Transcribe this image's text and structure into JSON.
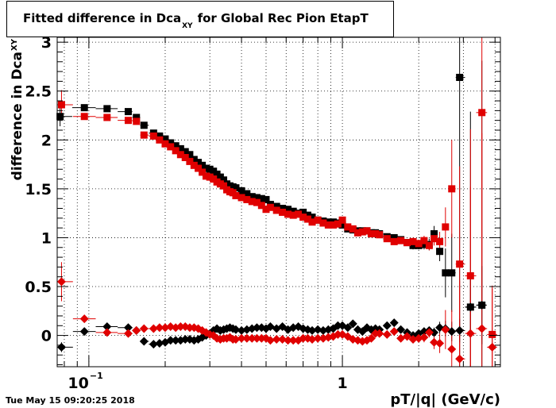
{
  "chart_data": {
    "type": "scatter",
    "title": {
      "main": "Fitted difference in Dca",
      "sub": "XY",
      "rest": "for Global Rec Pion EtapT"
    },
    "ylabel": {
      "main": "difference in Dca",
      "sub": "XY"
    },
    "xlabel": "pT/|q| (GeV/c)",
    "xscale": "log",
    "xlim": [
      0.075,
      4.2
    ],
    "ylim": [
      -0.32,
      3.05
    ],
    "grid": true,
    "ytick_labels": [
      "0",
      "0.5",
      "1",
      "1.5",
      "2",
      "2.5",
      "3"
    ],
    "xtick_labels": [
      {
        "base": "10",
        "exp": "−1"
      },
      {
        "base": "1",
        "exp": ""
      }
    ],
    "series": [
      {
        "marker": "square",
        "color": "#000000",
        "x": [
          0.077,
          0.096,
          0.118,
          0.143,
          0.154,
          0.165,
          0.18,
          0.19,
          0.2,
          0.21,
          0.22,
          0.23,
          0.24,
          0.25,
          0.26,
          0.27,
          0.28,
          0.29,
          0.3,
          0.31,
          0.32,
          0.33,
          0.34,
          0.35,
          0.36,
          0.37,
          0.38,
          0.4,
          0.42,
          0.44,
          0.46,
          0.48,
          0.5,
          0.52,
          0.55,
          0.58,
          0.61,
          0.64,
          0.67,
          0.7,
          0.73,
          0.76,
          0.8,
          0.84,
          0.88,
          0.92,
          0.96,
          1.0,
          1.05,
          1.1,
          1.15,
          1.2,
          1.25,
          1.3,
          1.35,
          1.4,
          1.5,
          1.6,
          1.7,
          1.8,
          1.9,
          2.0,
          2.1,
          2.2,
          2.3,
          2.42,
          2.55,
          2.7,
          2.9,
          3.2,
          3.55
        ],
        "y": [
          2.24,
          2.33,
          2.32,
          2.29,
          2.23,
          2.15,
          2.07,
          2.04,
          2.01,
          1.97,
          1.94,
          1.91,
          1.88,
          1.85,
          1.8,
          1.77,
          1.74,
          1.71,
          1.7,
          1.68,
          1.65,
          1.62,
          1.59,
          1.55,
          1.53,
          1.52,
          1.51,
          1.48,
          1.45,
          1.42,
          1.41,
          1.4,
          1.39,
          1.34,
          1.32,
          1.3,
          1.29,
          1.27,
          1.25,
          1.26,
          1.23,
          1.21,
          1.18,
          1.17,
          1.16,
          1.16,
          1.15,
          1.13,
          1.09,
          1.08,
          1.07,
          1.07,
          1.07,
          1.05,
          1.05,
          1.04,
          1.01,
          1.0,
          0.98,
          0.95,
          0.92,
          0.92,
          0.93,
          0.93,
          1.04,
          0.86,
          0.64,
          0.64,
          2.64,
          0.29,
          0.31
        ],
        "yerr": [
          0.1,
          0.03,
          0.03,
          0.03,
          0.02,
          0.02,
          0.02,
          0.02,
          0.02,
          0.02,
          0.02,
          0.02,
          0.02,
          0.02,
          0.02,
          0.02,
          0.02,
          0.02,
          0.02,
          0.02,
          0.02,
          0.02,
          0.02,
          0.02,
          0.02,
          0.02,
          0.02,
          0.02,
          0.02,
          0.02,
          0.02,
          0.02,
          0.02,
          0.02,
          0.02,
          0.02,
          0.02,
          0.02,
          0.02,
          0.02,
          0.02,
          0.02,
          0.02,
          0.02,
          0.02,
          0.02,
          0.02,
          0.02,
          0.02,
          0.02,
          0.02,
          0.02,
          0.02,
          0.02,
          0.02,
          0.02,
          0.03,
          0.03,
          0.03,
          0.03,
          0.04,
          0.04,
          0.05,
          0.06,
          0.08,
          0.1,
          0.25,
          0.4,
          3.0,
          2.0,
          2.5
        ]
      },
      {
        "marker": "square",
        "color": "#e00000",
        "x": [
          0.078,
          0.096,
          0.118,
          0.143,
          0.154,
          0.165,
          0.18,
          0.19,
          0.2,
          0.21,
          0.22,
          0.23,
          0.24,
          0.25,
          0.26,
          0.27,
          0.28,
          0.29,
          0.3,
          0.31,
          0.32,
          0.33,
          0.34,
          0.35,
          0.36,
          0.37,
          0.38,
          0.4,
          0.42,
          0.44,
          0.46,
          0.48,
          0.5,
          0.52,
          0.55,
          0.58,
          0.61,
          0.64,
          0.67,
          0.7,
          0.73,
          0.76,
          0.8,
          0.84,
          0.88,
          0.92,
          0.96,
          1.0,
          1.05,
          1.1,
          1.15,
          1.2,
          1.25,
          1.3,
          1.35,
          1.4,
          1.5,
          1.6,
          1.7,
          1.8,
          1.9,
          2.0,
          2.1,
          2.2,
          2.3,
          2.42,
          2.55,
          2.7,
          2.9,
          3.2,
          3.55,
          3.9
        ],
        "y": [
          2.36,
          2.24,
          2.23,
          2.2,
          2.19,
          2.05,
          2.04,
          2.0,
          1.96,
          1.93,
          1.89,
          1.85,
          1.82,
          1.78,
          1.74,
          1.71,
          1.67,
          1.63,
          1.62,
          1.6,
          1.57,
          1.55,
          1.53,
          1.49,
          1.47,
          1.46,
          1.43,
          1.41,
          1.39,
          1.37,
          1.36,
          1.33,
          1.29,
          1.31,
          1.28,
          1.26,
          1.24,
          1.23,
          1.24,
          1.21,
          1.19,
          1.16,
          1.18,
          1.15,
          1.13,
          1.13,
          1.14,
          1.18,
          1.11,
          1.09,
          1.05,
          1.06,
          1.07,
          1.04,
          1.04,
          1.03,
          0.99,
          0.96,
          0.97,
          0.95,
          0.96,
          0.94,
          0.97,
          0.92,
          0.99,
          0.96,
          1.11,
          1.5,
          0.73,
          0.61,
          2.28,
          0.01
        ],
        "yerr": [
          0.15,
          0.03,
          0.03,
          0.03,
          0.02,
          0.02,
          0.02,
          0.02,
          0.02,
          0.02,
          0.02,
          0.02,
          0.02,
          0.02,
          0.02,
          0.02,
          0.02,
          0.02,
          0.02,
          0.02,
          0.02,
          0.02,
          0.02,
          0.02,
          0.02,
          0.02,
          0.02,
          0.02,
          0.02,
          0.02,
          0.02,
          0.02,
          0.02,
          0.02,
          0.02,
          0.02,
          0.02,
          0.02,
          0.02,
          0.02,
          0.02,
          0.02,
          0.02,
          0.02,
          0.02,
          0.02,
          0.02,
          0.02,
          0.02,
          0.02,
          0.02,
          0.02,
          0.02,
          0.02,
          0.02,
          0.02,
          0.03,
          0.03,
          0.03,
          0.03,
          0.04,
          0.04,
          0.05,
          0.05,
          0.07,
          0.1,
          0.2,
          0.5,
          1.0,
          1.5,
          2.0,
          0.5
        ]
      },
      {
        "marker": "diamond",
        "color": "#000000",
        "x": [
          0.078,
          0.096,
          0.118,
          0.143,
          0.154,
          0.165,
          0.18,
          0.19,
          0.2,
          0.21,
          0.22,
          0.23,
          0.24,
          0.25,
          0.26,
          0.27,
          0.28,
          0.29,
          0.3,
          0.31,
          0.32,
          0.33,
          0.34,
          0.35,
          0.36,
          0.37,
          0.38,
          0.4,
          0.42,
          0.44,
          0.46,
          0.48,
          0.5,
          0.52,
          0.55,
          0.58,
          0.61,
          0.64,
          0.67,
          0.7,
          0.73,
          0.76,
          0.8,
          0.84,
          0.88,
          0.92,
          0.96,
          1.0,
          1.05,
          1.1,
          1.15,
          1.2,
          1.25,
          1.3,
          1.35,
          1.4,
          1.5,
          1.6,
          1.7,
          1.8,
          1.9,
          2.0,
          2.1,
          2.2,
          2.3,
          2.42,
          2.55,
          2.7,
          2.9,
          3.2,
          3.55
        ],
        "y": [
          -0.12,
          0.04,
          0.09,
          0.08,
          0.05,
          -0.06,
          -0.09,
          -0.08,
          -0.07,
          -0.05,
          -0.05,
          -0.05,
          -0.04,
          -0.04,
          -0.05,
          -0.04,
          -0.02,
          0.0,
          0.02,
          0.05,
          0.07,
          0.05,
          0.06,
          0.07,
          0.08,
          0.07,
          0.06,
          0.05,
          0.06,
          0.07,
          0.08,
          0.08,
          0.07,
          0.09,
          0.07,
          0.09,
          0.06,
          0.08,
          0.09,
          0.07,
          0.06,
          0.05,
          0.06,
          0.05,
          0.06,
          0.07,
          0.1,
          0.1,
          0.08,
          0.12,
          0.06,
          0.04,
          0.08,
          0.06,
          0.07,
          0.06,
          0.1,
          0.13,
          0.06,
          0.03,
          -0.0,
          0.02,
          0.04,
          0.05,
          0.03,
          0.08,
          0.07,
          0.04,
          0.05,
          0.29,
          0.31
        ],
        "yerr": [
          0.05,
          0.03,
          0.02,
          0.02,
          0.02,
          0.02,
          0.02,
          0.02,
          0.02,
          0.02,
          0.02,
          0.02,
          0.02,
          0.02,
          0.02,
          0.02,
          0.02,
          0.02,
          0.02,
          0.02,
          0.02,
          0.02,
          0.02,
          0.02,
          0.02,
          0.02,
          0.02,
          0.02,
          0.02,
          0.02,
          0.02,
          0.02,
          0.02,
          0.02,
          0.02,
          0.02,
          0.02,
          0.02,
          0.02,
          0.02,
          0.02,
          0.02,
          0.02,
          0.02,
          0.02,
          0.02,
          0.02,
          0.02,
          0.02,
          0.02,
          0.02,
          0.02,
          0.02,
          0.02,
          0.02,
          0.02,
          0.03,
          0.03,
          0.03,
          0.03,
          0.03,
          0.03,
          0.04,
          0.04,
          0.05,
          0.06,
          0.08,
          0.1,
          0.12,
          0.3,
          0.4
        ]
      },
      {
        "marker": "diamond",
        "color": "#e00000",
        "x": [
          0.078,
          0.096,
          0.118,
          0.143,
          0.154,
          0.165,
          0.18,
          0.19,
          0.2,
          0.21,
          0.22,
          0.23,
          0.24,
          0.25,
          0.26,
          0.27,
          0.28,
          0.29,
          0.3,
          0.31,
          0.32,
          0.33,
          0.34,
          0.35,
          0.36,
          0.37,
          0.38,
          0.4,
          0.42,
          0.44,
          0.46,
          0.48,
          0.5,
          0.52,
          0.55,
          0.58,
          0.61,
          0.64,
          0.67,
          0.7,
          0.73,
          0.76,
          0.8,
          0.84,
          0.88,
          0.92,
          0.96,
          1.0,
          1.05,
          1.1,
          1.15,
          1.2,
          1.25,
          1.3,
          1.35,
          1.4,
          1.5,
          1.6,
          1.7,
          1.8,
          1.9,
          2.0,
          2.1,
          2.2,
          2.3,
          2.42,
          2.55,
          2.7,
          2.9,
          3.2,
          3.55,
          3.9
        ],
        "y": [
          0.55,
          0.17,
          0.03,
          0.02,
          0.05,
          0.07,
          0.07,
          0.08,
          0.08,
          0.09,
          0.08,
          0.09,
          0.09,
          0.08,
          0.08,
          0.07,
          0.05,
          0.03,
          0.01,
          0.0,
          -0.03,
          -0.04,
          -0.03,
          -0.03,
          -0.02,
          -0.04,
          -0.04,
          -0.03,
          -0.03,
          -0.03,
          -0.03,
          -0.03,
          -0.03,
          -0.05,
          -0.04,
          -0.04,
          -0.05,
          -0.05,
          -0.05,
          -0.03,
          -0.03,
          -0.04,
          -0.03,
          -0.03,
          -0.02,
          -0.01,
          0.01,
          0.01,
          -0.01,
          -0.04,
          -0.05,
          -0.06,
          -0.05,
          -0.03,
          0.02,
          0.02,
          0.01,
          0.04,
          -0.03,
          -0.01,
          -0.04,
          -0.03,
          -0.02,
          0.03,
          -0.07,
          -0.08,
          0.06,
          -0.14,
          -0.24,
          0.02,
          0.07,
          -0.12
        ],
        "yerr": [
          0.2,
          0.04,
          0.03,
          0.02,
          0.02,
          0.02,
          0.02,
          0.02,
          0.02,
          0.02,
          0.02,
          0.02,
          0.02,
          0.02,
          0.02,
          0.02,
          0.02,
          0.02,
          0.02,
          0.02,
          0.02,
          0.02,
          0.02,
          0.02,
          0.02,
          0.02,
          0.02,
          0.02,
          0.02,
          0.02,
          0.02,
          0.02,
          0.02,
          0.02,
          0.02,
          0.02,
          0.02,
          0.02,
          0.02,
          0.02,
          0.02,
          0.02,
          0.02,
          0.02,
          0.02,
          0.02,
          0.02,
          0.02,
          0.02,
          0.02,
          0.02,
          0.02,
          0.02,
          0.02,
          0.02,
          0.02,
          0.03,
          0.03,
          0.03,
          0.03,
          0.04,
          0.04,
          0.05,
          0.05,
          0.07,
          0.1,
          0.2,
          0.4,
          0.8,
          1.5,
          2.0,
          0.6
        ]
      }
    ]
  },
  "timestamp": "Tue May 15 09:20:25 2018"
}
